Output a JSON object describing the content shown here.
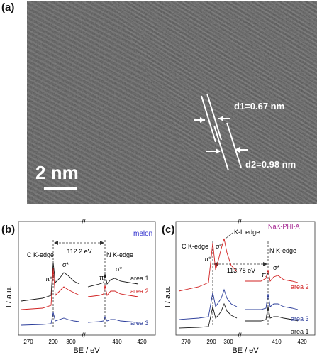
{
  "panels": {
    "a": {
      "label": "(a)",
      "d1": "d1=0.67 nm",
      "d2": "d2=0.98 nm",
      "scale_bar": "2 nm"
    },
    "b": {
      "label": "(b)",
      "sample": "melon",
      "c_edge": "C K-edge",
      "n_edge": "N K-edge",
      "gap": "112.2 eV",
      "pi": "π*",
      "sigma": "σ*",
      "pi_n": "π*",
      "sigma_n": "σ*",
      "traces": [
        "area 1",
        "area 2",
        "area 3"
      ]
    },
    "c": {
      "label": "(c)",
      "sample": "NaK-PHI-A",
      "c_edge": "C K-edge",
      "kl_edge": "K-L edge",
      "n_edge": "N K-edge",
      "gap": "113.78 eV",
      "pi": "π*",
      "sigma": "σ*",
      "pi_n": "π*",
      "sigma_n": "σ*",
      "traces": [
        "area 2",
        "area 3",
        "area 1"
      ]
    }
  },
  "axes": {
    "ylabel": "I / a.u.",
    "xlabel": "BE / eV",
    "ticks_b": [
      "270",
      "290",
      "300",
      "410",
      "420"
    ],
    "ticks_c": [
      "270",
      "290",
      "300",
      "410",
      "420"
    ]
  },
  "colors": {
    "area1": "#1a1a1a",
    "area2": "#d12020",
    "area3": "#2a3c9a",
    "sample_b": "#2a2acc",
    "sample_c": "#a01a8a"
  },
  "chart_data": [
    {
      "type": "line",
      "panel": "b",
      "xlabel": "BE / eV",
      "ylabel": "I / a.u.",
      "series": [
        {
          "name": "area 1",
          "x": [
            270,
            280,
            285,
            286,
            288,
            292,
            296,
            300,
            405,
            407,
            408,
            410,
            414,
            420
          ],
          "y": [
            0.55,
            0.6,
            0.65,
            1.0,
            0.85,
            0.9,
            0.82,
            0.75,
            0.7,
            0.95,
            0.8,
            0.85,
            0.8,
            0.72
          ]
        },
        {
          "name": "area 2",
          "x": [
            270,
            280,
            285,
            286,
            288,
            292,
            296,
            300,
            405,
            407,
            408,
            410,
            414,
            420
          ],
          "y": [
            0.35,
            0.38,
            0.42,
            0.95,
            0.6,
            0.7,
            0.6,
            0.52,
            0.5,
            0.78,
            0.6,
            0.65,
            0.6,
            0.52
          ]
        },
        {
          "name": "area 3",
          "x": [
            270,
            280,
            285,
            286,
            288,
            292,
            296,
            300,
            405,
            407,
            408,
            410,
            414,
            420
          ],
          "y": [
            0.15,
            0.17,
            0.18,
            0.4,
            0.26,
            0.27,
            0.24,
            0.22,
            0.2,
            0.3,
            0.24,
            0.25,
            0.23,
            0.2
          ]
        }
      ]
    },
    {
      "type": "line",
      "panel": "c",
      "xlabel": "BE / eV",
      "ylabel": "I / a.u.",
      "series": [
        {
          "name": "area 2",
          "x": [
            270,
            280,
            285,
            286,
            288,
            292,
            294,
            298,
            300,
            405,
            407,
            408,
            410,
            414,
            420
          ],
          "y": [
            0.5,
            0.53,
            0.57,
            1.0,
            0.75,
            0.88,
            0.8,
            0.95,
            0.78,
            0.65,
            0.85,
            0.7,
            0.75,
            0.7,
            0.62
          ]
        },
        {
          "name": "area 3",
          "x": [
            270,
            280,
            285,
            286,
            288,
            292,
            294,
            298,
            300,
            405,
            407,
            408,
            410,
            414,
            420
          ],
          "y": [
            0.2,
            0.22,
            0.24,
            0.55,
            0.35,
            0.42,
            0.38,
            0.5,
            0.38,
            0.3,
            0.48,
            0.34,
            0.36,
            0.33,
            0.3
          ]
        },
        {
          "name": "area 1",
          "x": [
            270,
            280,
            285,
            286,
            288,
            292,
            294,
            298,
            300,
            405,
            407,
            408,
            410,
            414,
            420
          ],
          "y": [
            0.08,
            0.1,
            0.11,
            0.35,
            0.18,
            0.3,
            0.25,
            0.38,
            0.25,
            0.18,
            0.32,
            0.2,
            0.22,
            0.2,
            0.17
          ]
        }
      ]
    }
  ]
}
